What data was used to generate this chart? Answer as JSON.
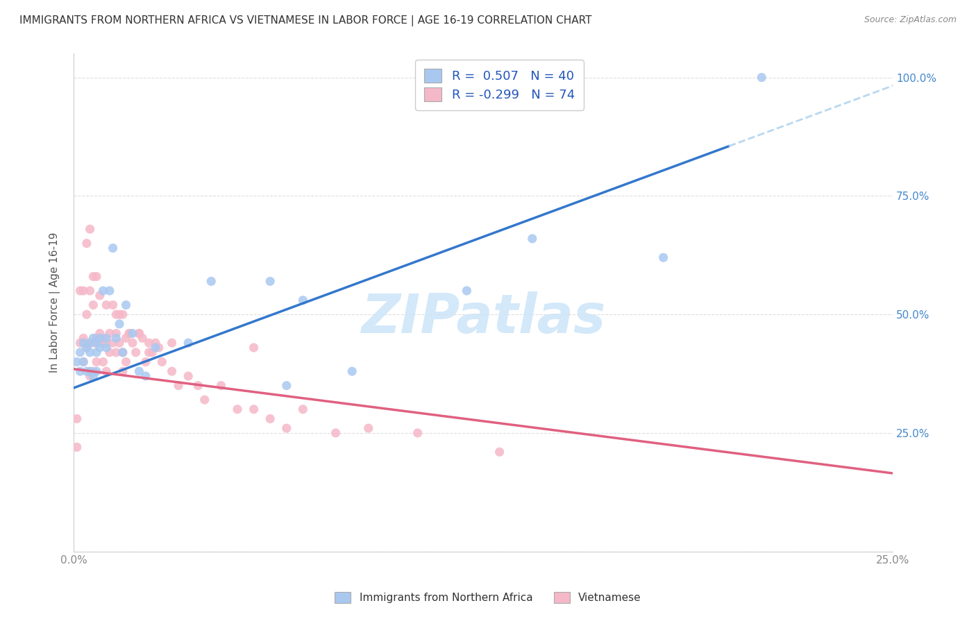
{
  "title": "IMMIGRANTS FROM NORTHERN AFRICA VS VIETNAMESE IN LABOR FORCE | AGE 16-19 CORRELATION CHART",
  "source": "Source: ZipAtlas.com",
  "ylabel": "In Labor Force | Age 16-19",
  "xlim": [
    0.0,
    0.25
  ],
  "ylim": [
    0.0,
    1.05
  ],
  "xticks": [
    0.0,
    0.05,
    0.1,
    0.15,
    0.2,
    0.25
  ],
  "yticks": [
    0.0,
    0.25,
    0.5,
    0.75,
    1.0
  ],
  "xticklabels": [
    "0.0%",
    "",
    "",
    "",
    "",
    "25.0%"
  ],
  "yticklabels_right": [
    "",
    "25.0%",
    "50.0%",
    "75.0%",
    "100.0%"
  ],
  "blue_R": "0.507",
  "blue_N": "40",
  "pink_R": "-0.299",
  "pink_N": "74",
  "blue_color": "#a8c8f0",
  "pink_color": "#f5b8c8",
  "blue_line_color": "#3377cc",
  "pink_line_color": "#e06080",
  "dash_color": "#b8d8f0",
  "watermark_color": "#cce5f8",
  "blue_intercept": 0.345,
  "blue_slope": 2.55,
  "pink_intercept": 0.385,
  "pink_slope": -0.88,
  "blue_scatter_x": [
    0.001,
    0.002,
    0.002,
    0.003,
    0.003,
    0.004,
    0.004,
    0.005,
    0.005,
    0.005,
    0.006,
    0.006,
    0.007,
    0.007,
    0.007,
    0.008,
    0.008,
    0.009,
    0.01,
    0.01,
    0.011,
    0.012,
    0.013,
    0.014,
    0.015,
    0.016,
    0.018,
    0.02,
    0.022,
    0.025,
    0.035,
    0.042,
    0.06,
    0.065,
    0.07,
    0.085,
    0.12,
    0.14,
    0.18,
    0.21
  ],
  "blue_scatter_y": [
    0.4,
    0.42,
    0.38,
    0.44,
    0.4,
    0.43,
    0.38,
    0.44,
    0.42,
    0.38,
    0.45,
    0.37,
    0.44,
    0.42,
    0.38,
    0.43,
    0.45,
    0.55,
    0.45,
    0.43,
    0.55,
    0.64,
    0.45,
    0.48,
    0.42,
    0.52,
    0.46,
    0.38,
    0.37,
    0.43,
    0.44,
    0.57,
    0.57,
    0.35,
    0.53,
    0.38,
    0.55,
    0.66,
    0.62,
    1.0
  ],
  "pink_scatter_x": [
    0.001,
    0.001,
    0.002,
    0.002,
    0.003,
    0.003,
    0.003,
    0.004,
    0.004,
    0.005,
    0.005,
    0.005,
    0.006,
    0.006,
    0.006,
    0.007,
    0.007,
    0.008,
    0.008,
    0.009,
    0.009,
    0.01,
    0.01,
    0.011,
    0.011,
    0.012,
    0.012,
    0.013,
    0.013,
    0.014,
    0.014,
    0.015,
    0.015,
    0.016,
    0.016,
    0.017,
    0.018,
    0.019,
    0.02,
    0.021,
    0.022,
    0.023,
    0.024,
    0.025,
    0.026,
    0.027,
    0.03,
    0.032,
    0.035,
    0.038,
    0.04,
    0.045,
    0.05,
    0.055,
    0.06,
    0.065,
    0.07,
    0.08,
    0.09,
    0.105,
    0.004,
    0.005,
    0.006,
    0.007,
    0.008,
    0.01,
    0.013,
    0.015,
    0.017,
    0.02,
    0.023,
    0.03,
    0.055,
    0.13
  ],
  "pink_scatter_y": [
    0.28,
    0.22,
    0.55,
    0.44,
    0.55,
    0.45,
    0.4,
    0.5,
    0.43,
    0.55,
    0.44,
    0.37,
    0.52,
    0.44,
    0.38,
    0.45,
    0.4,
    0.46,
    0.44,
    0.45,
    0.4,
    0.44,
    0.38,
    0.46,
    0.42,
    0.52,
    0.44,
    0.46,
    0.42,
    0.5,
    0.44,
    0.42,
    0.38,
    0.45,
    0.4,
    0.46,
    0.44,
    0.42,
    0.46,
    0.45,
    0.4,
    0.44,
    0.42,
    0.44,
    0.43,
    0.4,
    0.44,
    0.35,
    0.37,
    0.35,
    0.32,
    0.35,
    0.3,
    0.3,
    0.28,
    0.26,
    0.3,
    0.25,
    0.26,
    0.25,
    0.65,
    0.68,
    0.58,
    0.58,
    0.54,
    0.52,
    0.5,
    0.5,
    0.46,
    0.46,
    0.42,
    0.38,
    0.43,
    0.21
  ]
}
